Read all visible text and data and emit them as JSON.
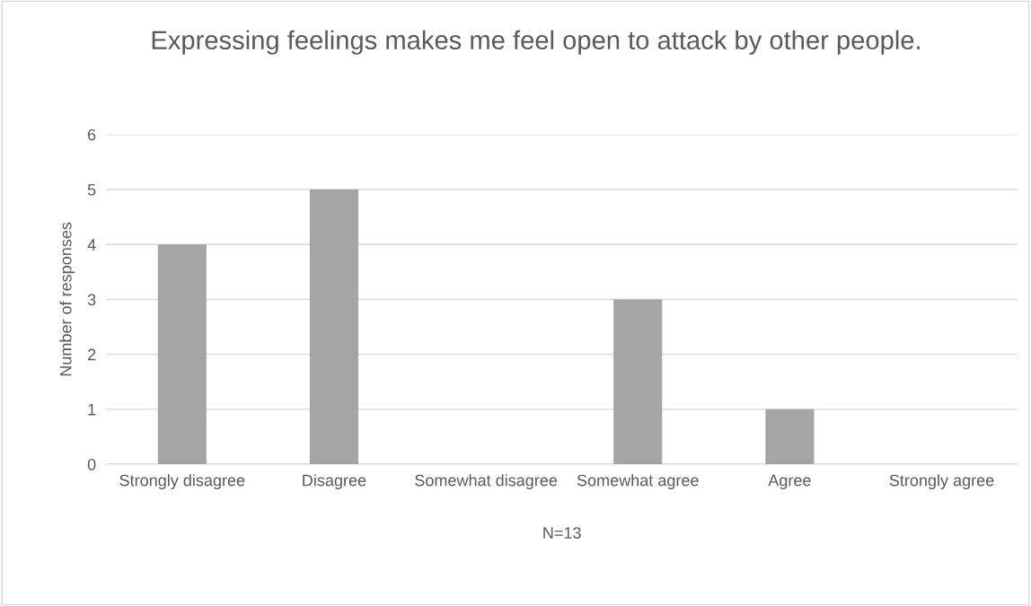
{
  "chart_data": {
    "type": "bar",
    "title": "Expressing feelings makes me feel open to attack by other people.",
    "xlabel": "N=13",
    "ylabel": "Number of responses",
    "categories": [
      "Strongly disagree",
      "Disagree",
      "Somewhat disagree",
      "Somewhat agree",
      "Agree",
      "Strongly agree"
    ],
    "values": [
      4,
      5,
      0,
      3,
      1,
      0
    ],
    "color": "#a5a5a5",
    "ylim": [
      0,
      6
    ],
    "yticks": [
      0,
      1,
      2,
      3,
      4,
      5,
      6
    ],
    "grid": "y",
    "legend": false
  }
}
